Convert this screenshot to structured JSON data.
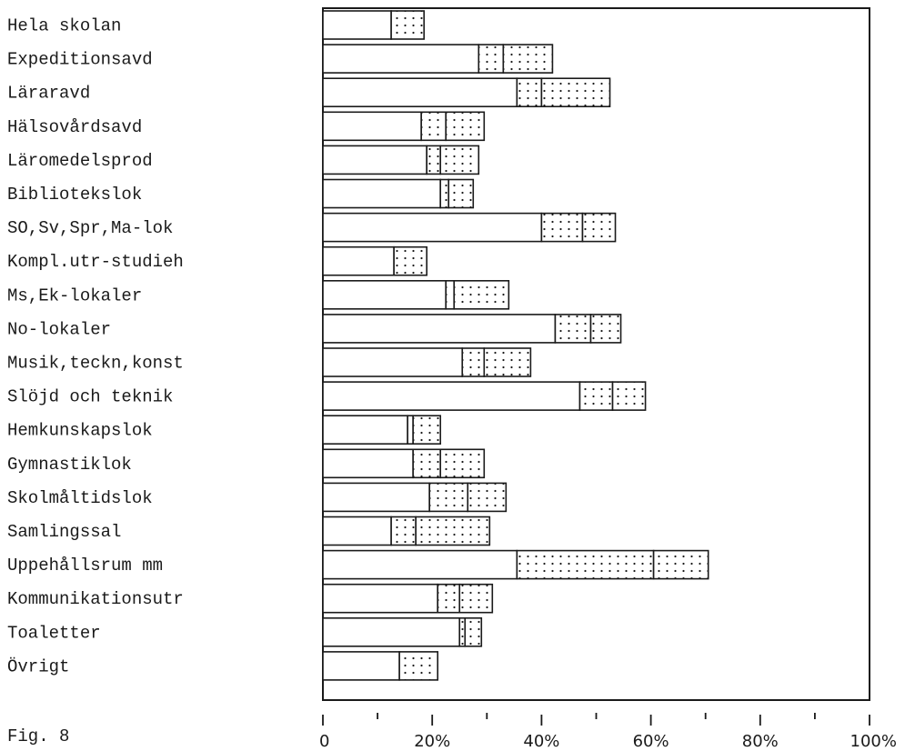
{
  "figure_label": "Fig. 8",
  "chart_data": {
    "type": "bar",
    "orientation": "horizontal",
    "stacked": true,
    "categories": [
      "Hela skolan",
      "Expeditionsavd",
      "Läraravd",
      "Hälsovårdsavd",
      "Läromedelsprod",
      "Bibliotekslok",
      "SO,Sv,Spr,Ma-lok",
      "Kompl.utr-studieh",
      "Ms,Ek-lokaler",
      "No-lokaler",
      "Musik,teckn,konst",
      "Slöjd och teknik",
      "Hemkunskapslok",
      "Gymnastiklok",
      "Skolmåltidslok",
      "Samlingssal",
      "Uppehållsrum mm",
      "Kommunikationsutr",
      "Toaletter",
      "Övrigt"
    ],
    "series": [
      {
        "pattern": "plain",
        "values": [
          12.5,
          28.5,
          35.5,
          18.0,
          19.0,
          21.5,
          40.0,
          13.0,
          22.5,
          42.5,
          25.5,
          47.0,
          15.5,
          16.5,
          19.5,
          12.5,
          35.5,
          21.0,
          25.0,
          14.0
        ]
      },
      {
        "pattern": "dotted",
        "values": [
          0.0,
          4.5,
          4.5,
          4.5,
          2.5,
          1.5,
          7.5,
          0.0,
          1.5,
          6.5,
          4.0,
          6.0,
          1.0,
          5.0,
          7.0,
          4.5,
          25.0,
          4.0,
          1.0,
          0.0
        ]
      },
      {
        "pattern": "dotted",
        "values": [
          6.0,
          9.0,
          12.5,
          7.0,
          7.0,
          4.5,
          6.0,
          6.0,
          10.0,
          5.5,
          8.5,
          6.0,
          5.0,
          8.0,
          7.0,
          13.5,
          10.0,
          6.0,
          3.0,
          7.0
        ]
      }
    ],
    "x_axis": {
      "range": [
        0,
        100
      ],
      "major_ticks": [
        0,
        20,
        40,
        60,
        80,
        100
      ],
      "minor_ticks": [
        10,
        30,
        50,
        70,
        90
      ],
      "tick_labels": [
        "0",
        "20%",
        "40%",
        "60%",
        "80%",
        "100%"
      ]
    },
    "grid": false,
    "legend": "none"
  }
}
